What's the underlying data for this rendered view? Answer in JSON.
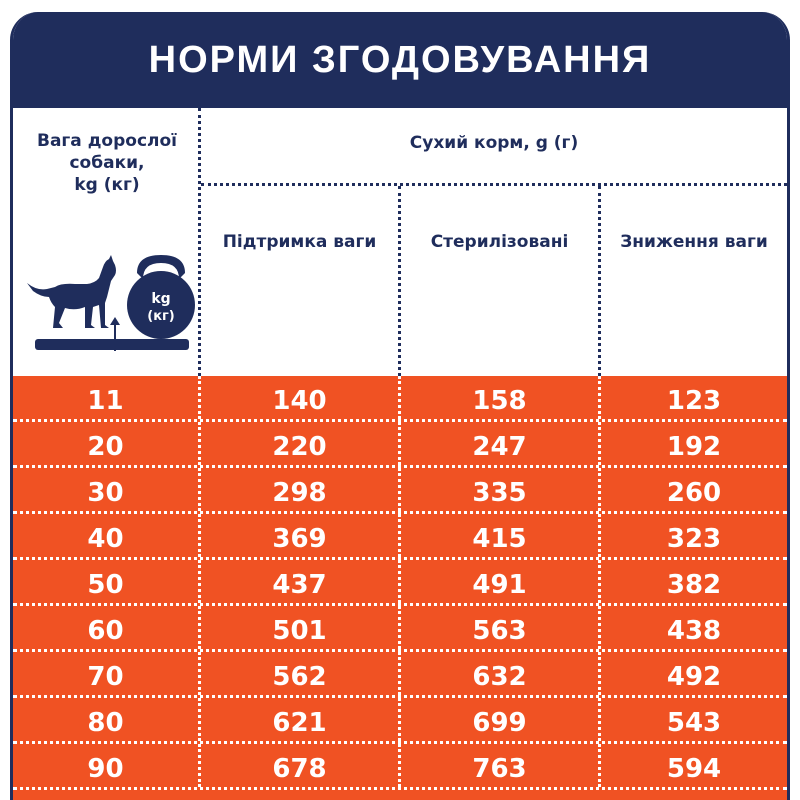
{
  "title": "НОРМИ ЗГОДОВУВАННЯ",
  "header": {
    "weight_line1": "Вага дорослої",
    "weight_line2": "собаки,",
    "weight_line3": "kg (кг)",
    "dry_food": "Сухий корм, g (г)",
    "col_maintenance": "Підтримка ваги",
    "col_sterilized": "Стерилізовані",
    "col_weight_loss": "Зниження ваги",
    "kettlebell_line1": "kg",
    "kettlebell_line2": "(кг)"
  },
  "icons": [
    "dog-icon",
    "kettlebell-icon",
    "scale-platform-icon"
  ],
  "colors": {
    "navy": "#1f2d5c",
    "orange": "#f05223",
    "white": "#ffffff"
  },
  "rows": [
    {
      "weight": "11",
      "maintenance": "140",
      "sterilized": "158",
      "weight_loss": "123"
    },
    {
      "weight": "20",
      "maintenance": "220",
      "sterilized": "247",
      "weight_loss": "192"
    },
    {
      "weight": "30",
      "maintenance": "298",
      "sterilized": "335",
      "weight_loss": "260"
    },
    {
      "weight": "40",
      "maintenance": "369",
      "sterilized": "415",
      "weight_loss": "323"
    },
    {
      "weight": "50",
      "maintenance": "437",
      "sterilized": "491",
      "weight_loss": "382"
    },
    {
      "weight": "60",
      "maintenance": "501",
      "sterilized": "563",
      "weight_loss": "438"
    },
    {
      "weight": "70",
      "maintenance": "562",
      "sterilized": "632",
      "weight_loss": "492"
    },
    {
      "weight": "80",
      "maintenance": "621",
      "sterilized": "699",
      "weight_loss": "543"
    },
    {
      "weight": "90",
      "maintenance": "678",
      "sterilized": "763",
      "weight_loss": "594"
    }
  ]
}
